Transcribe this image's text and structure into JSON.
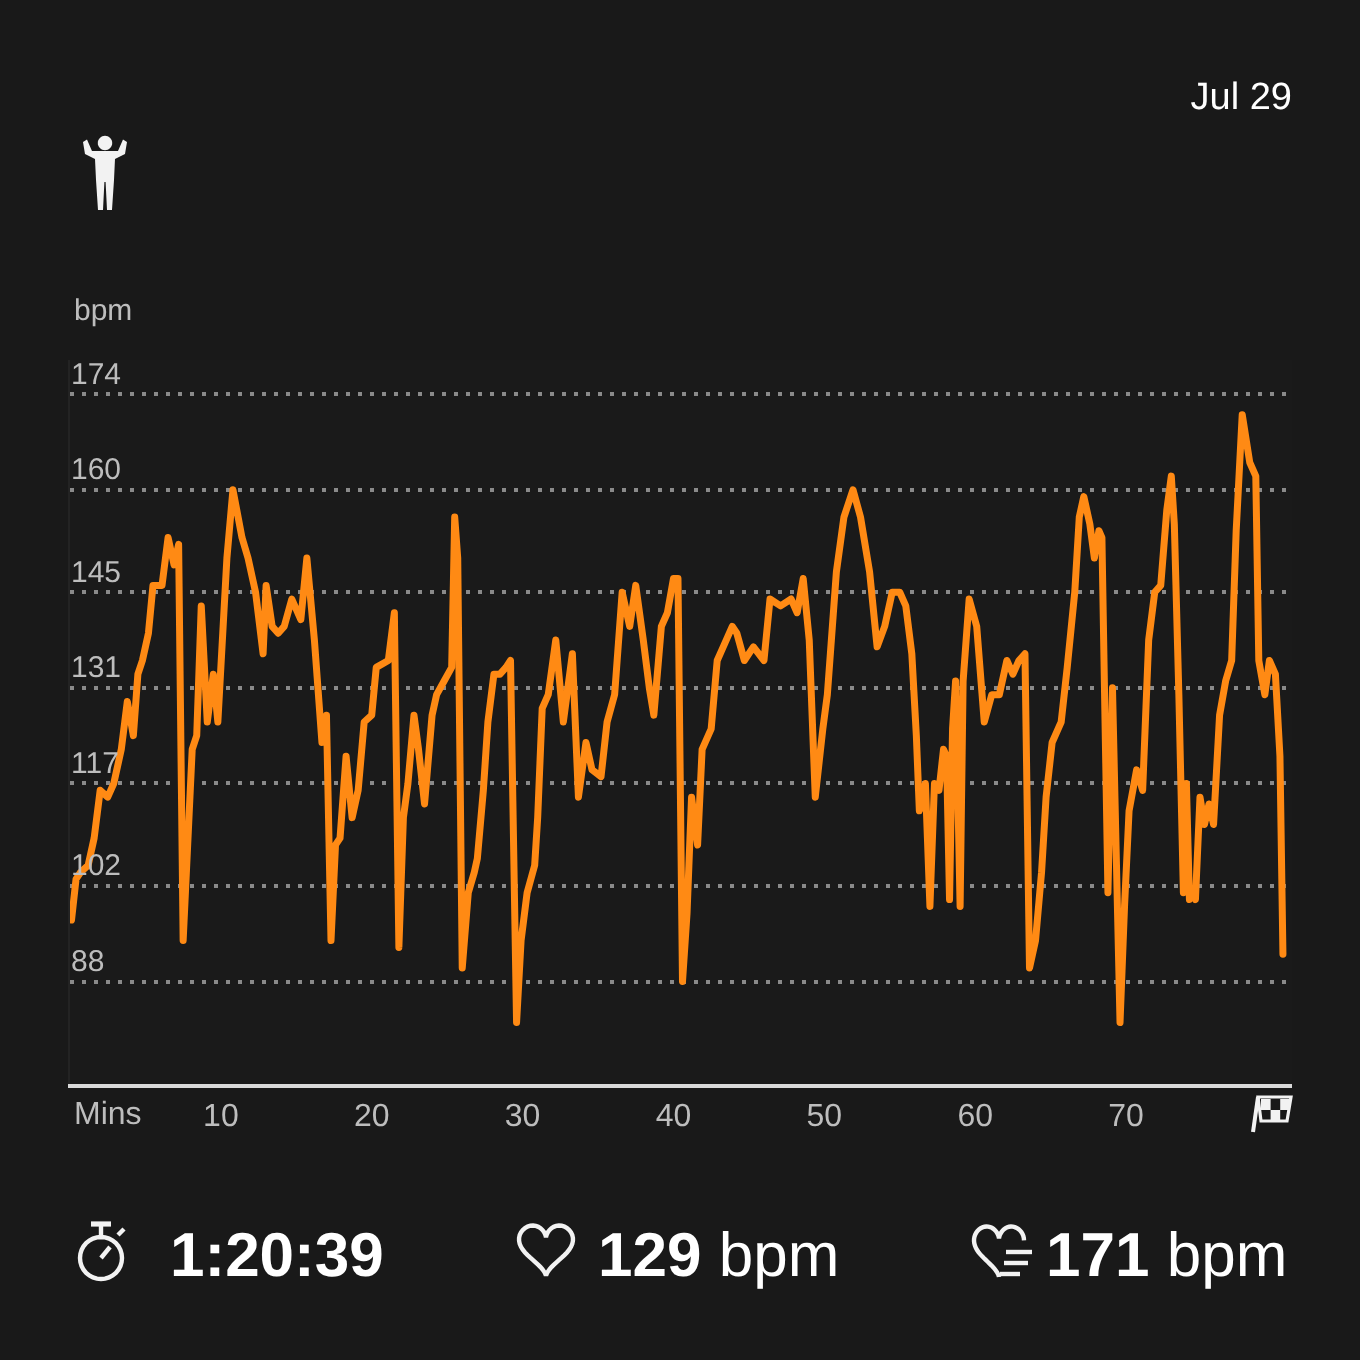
{
  "chart_data": {
    "type": "line",
    "title": "Jul 29",
    "xlabel": "Mins",
    "ylabel": "bpm",
    "annotations": [
      "1:20:39",
      "129 bpm",
      "171 bpm"
    ],
    "x": [
      0.1,
      0.4,
      0.7,
      1.2,
      1.6,
      2.0,
      2.5,
      2.9,
      3.4,
      3.8,
      4.2,
      4.5,
      4.8,
      5.2,
      5.5,
      6.1,
      6.5,
      6.9,
      7.2,
      7.5,
      8.1,
      8.4,
      8.7,
      9.1,
      9.5,
      9.8,
      10.4,
      10.8,
      11.4,
      11.8,
      12.3,
      12.8,
      13.0,
      13.4,
      13.8,
      14.2,
      14.7,
      15.3,
      15.7,
      16.2,
      16.7,
      17.0,
      17.3,
      17.6,
      17.9,
      18.3,
      18.7,
      19.1,
      19.5,
      20.0,
      20.3,
      21.1,
      21.5,
      21.8,
      22.1,
      22.4,
      22.8,
      23.1,
      23.5,
      24.0,
      24.3,
      24.8,
      25.3,
      25.5,
      25.7,
      26.0,
      26.4,
      26.8,
      27.0,
      27.4,
      27.7,
      28.1,
      28.5,
      28.9,
      29.2,
      29.6,
      29.9,
      30.3,
      30.8,
      31.0,
      31.3,
      31.7,
      32.2,
      32.7,
      33.3,
      33.7,
      34.2,
      34.6,
      35.2,
      35.6,
      36.1,
      36.6,
      37.1,
      37.5,
      38.0,
      38.4,
      38.7,
      39.2,
      39.6,
      40.0,
      40.3,
      40.6,
      40.9,
      41.2,
      41.6,
      41.9,
      42.5,
      42.9,
      43.3,
      43.9,
      44.2,
      44.7,
      45.3,
      46.0,
      46.4,
      47.1,
      47.8,
      48.2,
      48.6,
      49.0,
      49.4,
      49.9,
      50.2,
      50.8,
      51.3,
      51.9,
      52.4,
      53.0,
      53.5,
      54.0,
      54.5,
      55.0,
      55.4,
      55.8,
      56.1,
      56.3,
      56.7,
      57.0,
      57.3,
      57.6,
      57.9,
      58.1,
      58.3,
      58.5,
      58.7,
      59.0,
      59.2,
      59.6,
      60.1,
      60.6,
      61.1,
      61.6,
      62.1,
      62.5,
      62.9,
      63.3,
      63.6,
      64.0,
      64.4,
      64.7,
      65.1,
      65.7,
      66.1,
      66.6,
      66.9,
      67.2,
      67.6,
      67.9,
      68.2,
      68.4,
      68.8,
      69.1,
      69.6,
      69.9,
      70.2,
      70.7,
      71.1,
      71.5,
      71.9,
      72.3,
      72.7,
      73.0,
      73.2,
      73.5,
      73.8,
      74.0,
      74.2,
      74.4,
      74.6,
      74.9,
      75.2,
      75.5,
      75.8,
      76.2,
      76.6,
      77.0,
      77.3,
      77.7,
      78.2,
      78.6,
      78.8,
      79.2,
      79.5,
      79.9,
      80.2,
      80.4
    ],
    "series": [
      {
        "color": "#ff8a14",
        "values": [
          97,
          103,
          104,
          105,
          109,
          116,
          115,
          117,
          122,
          129,
          124,
          133,
          135,
          139,
          146,
          146,
          153,
          149,
          152,
          94,
          122,
          124,
          143,
          126,
          133,
          126,
          150,
          160,
          153,
          150,
          145,
          136,
          146,
          140,
          139,
          140,
          144,
          141,
          150,
          138,
          123,
          127,
          94,
          108,
          109,
          121,
          112,
          116,
          126,
          127,
          134,
          135,
          142,
          93,
          112,
          117,
          127,
          122,
          114,
          127,
          130,
          132,
          134,
          156,
          150,
          90,
          101,
          104,
          106,
          116,
          126,
          133,
          133,
          134,
          135,
          82,
          94,
          101,
          105,
          112,
          128,
          130,
          138,
          126,
          136,
          115,
          123,
          119,
          118,
          126,
          130,
          145,
          140,
          146,
          138,
          131,
          127,
          140,
          142,
          147,
          147,
          88,
          98,
          115,
          108,
          122,
          125,
          135,
          137,
          140,
          139,
          135,
          137,
          135,
          144,
          143,
          144,
          142,
          147,
          138,
          115,
          125,
          130,
          148,
          156,
          160,
          156,
          148,
          137,
          140,
          145,
          145,
          143,
          136,
          124,
          113,
          117,
          99,
          117,
          116,
          122,
          121,
          100,
          125,
          132,
          99,
          132,
          144,
          140,
          126,
          130,
          130,
          135,
          133,
          135,
          136,
          90,
          94,
          104,
          115,
          123,
          126,
          134,
          145,
          156,
          159,
          155,
          150,
          154,
          153,
          101,
          131,
          82,
          99,
          113,
          119,
          116,
          138,
          145,
          146,
          157,
          162,
          155,
          130,
          101,
          117,
          100,
          101,
          100,
          115,
          111,
          114,
          111,
          127,
          132,
          135,
          154,
          171,
          164,
          162,
          135,
          130,
          135,
          133,
          121,
          92
        ]
      }
    ],
    "xlim": [
      0,
      81
    ],
    "ylim": [
      73,
      179
    ],
    "xticks": [
      10,
      20,
      30,
      40,
      50,
      60,
      70
    ],
    "yticks": [
      88,
      102,
      117,
      131,
      145,
      160,
      174
    ],
    "grid": "y"
  }
}
